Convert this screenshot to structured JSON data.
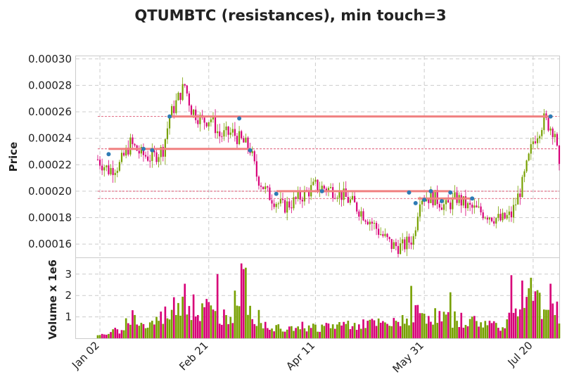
{
  "chart_data": {
    "type": "candlestick",
    "title": "QTUMBTC (resistances), min touch=3",
    "price_panel": {
      "ylabel": "Price",
      "ylim": [
        0.00015,
        0.000302
      ],
      "yticks": [
        "0.00016",
        "0.00018",
        "0.00020",
        "0.00022",
        "0.00024",
        "0.00026",
        "0.00028",
        "0.00030"
      ],
      "ytick_values": [
        0.00016,
        0.00018,
        0.0002,
        0.00022,
        0.00024,
        0.00026,
        0.00028,
        0.0003
      ]
    },
    "volume_panel": {
      "ylabel": "Volume x 1e6",
      "ylim": [
        0,
        3.75
      ],
      "yticks": [
        "1",
        "2",
        "3"
      ],
      "ytick_values": [
        1,
        2,
        3
      ]
    },
    "xlabels": [
      {
        "label": "Jan 02",
        "day": 1
      },
      {
        "label": "Feb 21",
        "day": 51
      },
      {
        "label": "Apr 11",
        "day": 100
      },
      {
        "label": "May 31",
        "day": 150
      },
      {
        "label": "Jul 20",
        "day": 200
      }
    ],
    "xlim": [
      -10,
      212
    ],
    "colors": {
      "up": "#77a000",
      "down": "#d70078",
      "line": "#f08080",
      "marker": "#2e7bb5"
    },
    "price_anchors": [
      [
        0,
        0.000224
      ],
      [
        5,
        0.000216
      ],
      [
        10,
        0.00022
      ],
      [
        15,
        0.000236
      ],
      [
        20,
        0.000228
      ],
      [
        25,
        0.000225
      ],
      [
        30,
        0.000232
      ],
      [
        33,
        0.000256
      ],
      [
        38,
        0.000274
      ],
      [
        40,
        0.00028
      ],
      [
        43,
        0.000262
      ],
      [
        48,
        0.000253
      ],
      [
        52,
        0.000255
      ],
      [
        56,
        0.000242
      ],
      [
        62,
        0.000244
      ],
      [
        66,
        0.000238
      ],
      [
        70,
        0.000232
      ],
      [
        73,
        0.000212
      ],
      [
        78,
        0.000198
      ],
      [
        85,
        0.000188
      ],
      [
        90,
        0.000192
      ],
      [
        95,
        0.000198
      ],
      [
        100,
        0.000204
      ],
      [
        110,
        0.0002
      ],
      [
        117,
        0.000191
      ],
      [
        125,
        0.000178
      ],
      [
        130,
        0.000168
      ],
      [
        135,
        0.000159
      ],
      [
        140,
        0.000158
      ],
      [
        145,
        0.000165
      ],
      [
        148,
        0.000196
      ],
      [
        155,
        0.000195
      ],
      [
        160,
        0.000188
      ],
      [
        165,
        0.000195
      ],
      [
        170,
        0.000188
      ],
      [
        175,
        0.000185
      ],
      [
        180,
        0.000182
      ],
      [
        185,
        0.000178
      ],
      [
        190,
        0.000182
      ],
      [
        195,
        0.000205
      ],
      [
        200,
        0.000238
      ],
      [
        205,
        0.000254
      ],
      [
        210,
        0.000245
      ],
      [
        212,
        0.000215
      ]
    ],
    "volume_anchors": [
      [
        0,
        0.1
      ],
      [
        10,
        0.4
      ],
      [
        16,
        1.0
      ],
      [
        22,
        0.5
      ],
      [
        30,
        1.0
      ],
      [
        36,
        1.5
      ],
      [
        40,
        2.0
      ],
      [
        44,
        0.9
      ],
      [
        50,
        1.4
      ],
      [
        55,
        0.9
      ],
      [
        62,
        1.2
      ],
      [
        66,
        2.6
      ],
      [
        70,
        1.2
      ],
      [
        80,
        0.5
      ],
      [
        90,
        0.6
      ],
      [
        100,
        0.5
      ],
      [
        120,
        0.7
      ],
      [
        135,
        0.6
      ],
      [
        145,
        1.2
      ],
      [
        155,
        1.0
      ],
      [
        170,
        0.8
      ],
      [
        185,
        0.6
      ],
      [
        195,
        1.5
      ],
      [
        200,
        2.3
      ],
      [
        205,
        1.3
      ],
      [
        212,
        1.2
      ]
    ],
    "volume_spikes": [
      [
        40,
        2.55
      ],
      [
        44,
        2.05
      ],
      [
        55,
        3.0
      ],
      [
        66,
        3.5
      ],
      [
        68,
        3.3
      ],
      [
        144,
        2.45
      ],
      [
        162,
        2.15
      ],
      [
        190,
        2.95
      ],
      [
        195,
        2.7
      ],
      [
        202,
        2.25
      ],
      [
        208,
        2.55
      ]
    ],
    "resistance_lines": [
      {
        "level": 0.0002565,
        "x_start": 33,
        "x_end": 208,
        "touches": [
          [
            33,
            0.0002565
          ],
          [
            65,
            0.000255
          ],
          [
            208,
            0.0002565
          ]
        ]
      },
      {
        "level": 0.000232,
        "x_start": 5,
        "x_end": 70,
        "touches": [
          [
            5,
            0.000228
          ],
          [
            21,
            0.000232
          ],
          [
            25,
            0.000231
          ],
          [
            70,
            0.000231
          ]
        ]
      },
      {
        "level": 0.0002,
        "x_start": 82,
        "x_end": 162,
        "touches": [
          [
            82,
            0.000198
          ],
          [
            103,
            0.0002
          ],
          [
            143,
            0.000199
          ],
          [
            153,
            0.0002
          ],
          [
            162,
            0.000199
          ]
        ]
      },
      {
        "level": 0.0001945,
        "x_start": 147,
        "x_end": 172,
        "touches": [
          [
            146,
            0.000191
          ],
          [
            150,
            0.0001935
          ],
          [
            158,
            0.0001925
          ],
          [
            172,
            0.0001945
          ]
        ]
      }
    ],
    "horizontal_dashed": [
      0.0002565,
      0.000232,
      0.0002,
      0.0001945
    ]
  }
}
